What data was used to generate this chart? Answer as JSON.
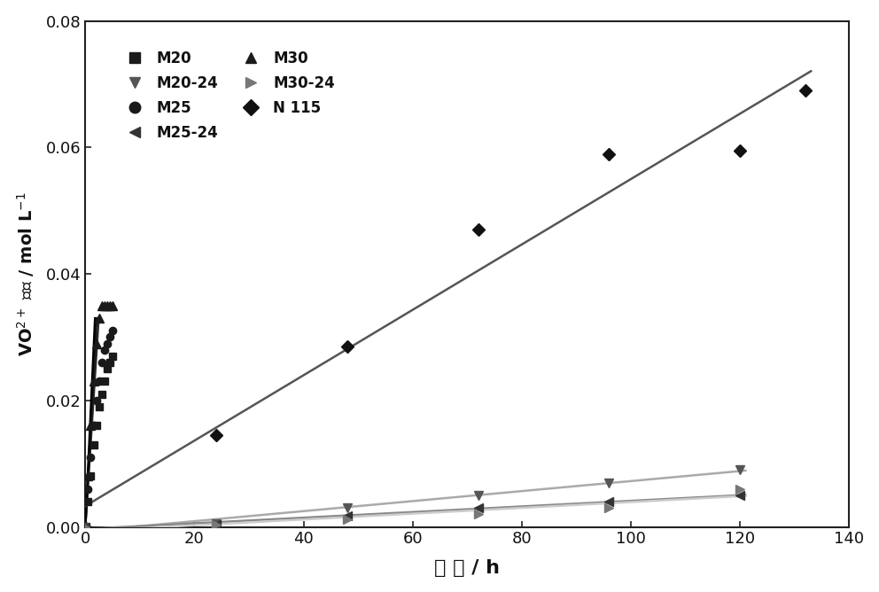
{
  "m20_x": [
    0,
    0.5,
    1.0,
    1.5,
    2.0,
    2.5,
    3.0,
    3.5,
    4.0,
    4.5,
    5.0
  ],
  "m20_y": [
    0,
    0.004,
    0.008,
    0.013,
    0.016,
    0.019,
    0.021,
    0.023,
    0.025,
    0.026,
    0.027
  ],
  "m25_x": [
    0,
    0.5,
    1.0,
    1.5,
    2.0,
    2.5,
    3.0,
    3.5,
    4.0,
    4.5,
    5.0
  ],
  "m25_y": [
    0,
    0.006,
    0.011,
    0.016,
    0.02,
    0.023,
    0.026,
    0.028,
    0.029,
    0.03,
    0.031
  ],
  "m30_x": [
    0,
    0.5,
    1.0,
    1.5,
    2.0,
    2.5,
    3.0,
    3.5,
    4.0,
    4.5,
    5.0
  ],
  "m30_y": [
    0,
    0.008,
    0.016,
    0.023,
    0.029,
    0.033,
    0.035,
    0.035,
    0.035,
    0.035,
    0.035
  ],
  "m20_line_slope": 0.0135,
  "m25_line_slope": 0.0158,
  "m30_line_slope": 0.0185,
  "n115_x": [
    0,
    24,
    48,
    72,
    96,
    120,
    132
  ],
  "n115_y": [
    0,
    0.0145,
    0.0285,
    0.047,
    0.059,
    0.0595,
    0.069
  ],
  "m20_24_x": [
    0,
    24,
    48,
    72,
    96,
    120
  ],
  "m20_24_y": [
    0,
    0.0005,
    0.003,
    0.005,
    0.007,
    0.009
  ],
  "m25_24_x": [
    0,
    24,
    48,
    72,
    96,
    120
  ],
  "m25_24_y": [
    0,
    0.0003,
    0.0018,
    0.003,
    0.004,
    0.005
  ],
  "m30_24_x": [
    0,
    24,
    48,
    72,
    96,
    120
  ],
  "m30_24_y": [
    0,
    0.0004,
    0.0012,
    0.002,
    0.003,
    0.006
  ],
  "xlim": [
    0,
    140
  ],
  "ylim": [
    0,
    0.08
  ],
  "xticks": [
    0,
    20,
    40,
    60,
    80,
    100,
    120,
    140
  ],
  "yticks": [
    0.0,
    0.02,
    0.04,
    0.06,
    0.08
  ],
  "bg_color": "#ffffff"
}
